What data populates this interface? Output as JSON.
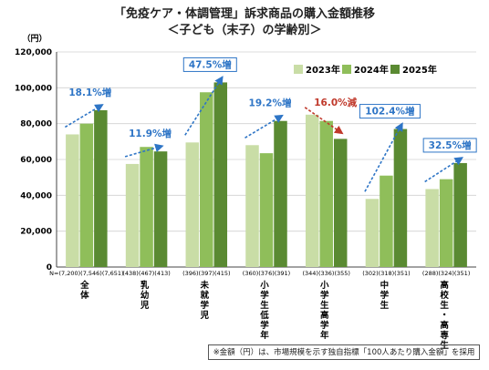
{
  "title": "「免疫ケア・体調管理」訴求商品の購入金額推移",
  "subtitle": "＜子ども（末子）の学齢別＞",
  "note": "※金額（円）は、市場規模を示す独自指標「100人あたり購入金額」を採用",
  "chart_data": {
    "type": "bar",
    "ylabel": "（円）",
    "ylim": [
      0,
      120000
    ],
    "yticks": [
      "0",
      "20,000",
      "40,000",
      "60,000",
      "80,000",
      "100,000",
      "120,000"
    ],
    "legend_position": "top-right",
    "categories": [
      "全体",
      "乳幼児",
      "未就学児",
      "小学生低学年",
      "小学生高学年",
      "中学生",
      "高校生・高専生"
    ],
    "n_labels": [
      "N=(7,200)",
      "(438)",
      "(396)",
      "(360)",
      "(344)",
      "(302)",
      "(288)"
    ],
    "n_values": [
      [
        "7,200",
        "7,546",
        "7,651"
      ],
      [
        "438",
        "467",
        "413"
      ],
      [
        "396",
        "397",
        "415"
      ],
      [
        "360",
        "376",
        "391"
      ],
      [
        "344",
        "336",
        "355"
      ],
      [
        "302",
        "318",
        "351"
      ],
      [
        "288",
        "324",
        "351"
      ]
    ],
    "n_label_strings": [
      "N=(7,200)(7,546)(7,651)",
      "(438)(467)(413)",
      "(396)(397)(415)",
      "(360)(376)(391)",
      "(344)(336)(355)",
      "(302)(318)(351)",
      "(288)(324)(351)"
    ],
    "series": [
      {
        "name": "2023年",
        "color": "#c9dda6",
        "values": [
          74000,
          57500,
          69500,
          68000,
          85000,
          38000,
          43500
        ]
      },
      {
        "name": "2024年",
        "color": "#8fbe5a",
        "values": [
          80000,
          67000,
          97500,
          63500,
          81500,
          51000,
          49000
        ]
      },
      {
        "name": "2025年",
        "color": "#5a8a32",
        "values": [
          87500,
          64500,
          103000,
          81500,
          71500,
          77000,
          58000
        ]
      }
    ],
    "annotations": [
      {
        "text": "18.1%増",
        "type": "up",
        "box": false
      },
      {
        "text": "11.9%増",
        "type": "up",
        "box": false
      },
      {
        "text": "47.5%増",
        "type": "up",
        "box": true
      },
      {
        "text": "19.2%増",
        "type": "up",
        "box": false
      },
      {
        "text": "16.0%減",
        "type": "down",
        "box": false
      },
      {
        "text": "102.4%増",
        "type": "up",
        "box": true
      },
      {
        "text": "32.5%増",
        "type": "up",
        "box": true
      }
    ],
    "colors": {
      "up": "#2e75c6",
      "down": "#c0392b",
      "axis": "#444444",
      "grid": "#d0d0d0"
    }
  }
}
